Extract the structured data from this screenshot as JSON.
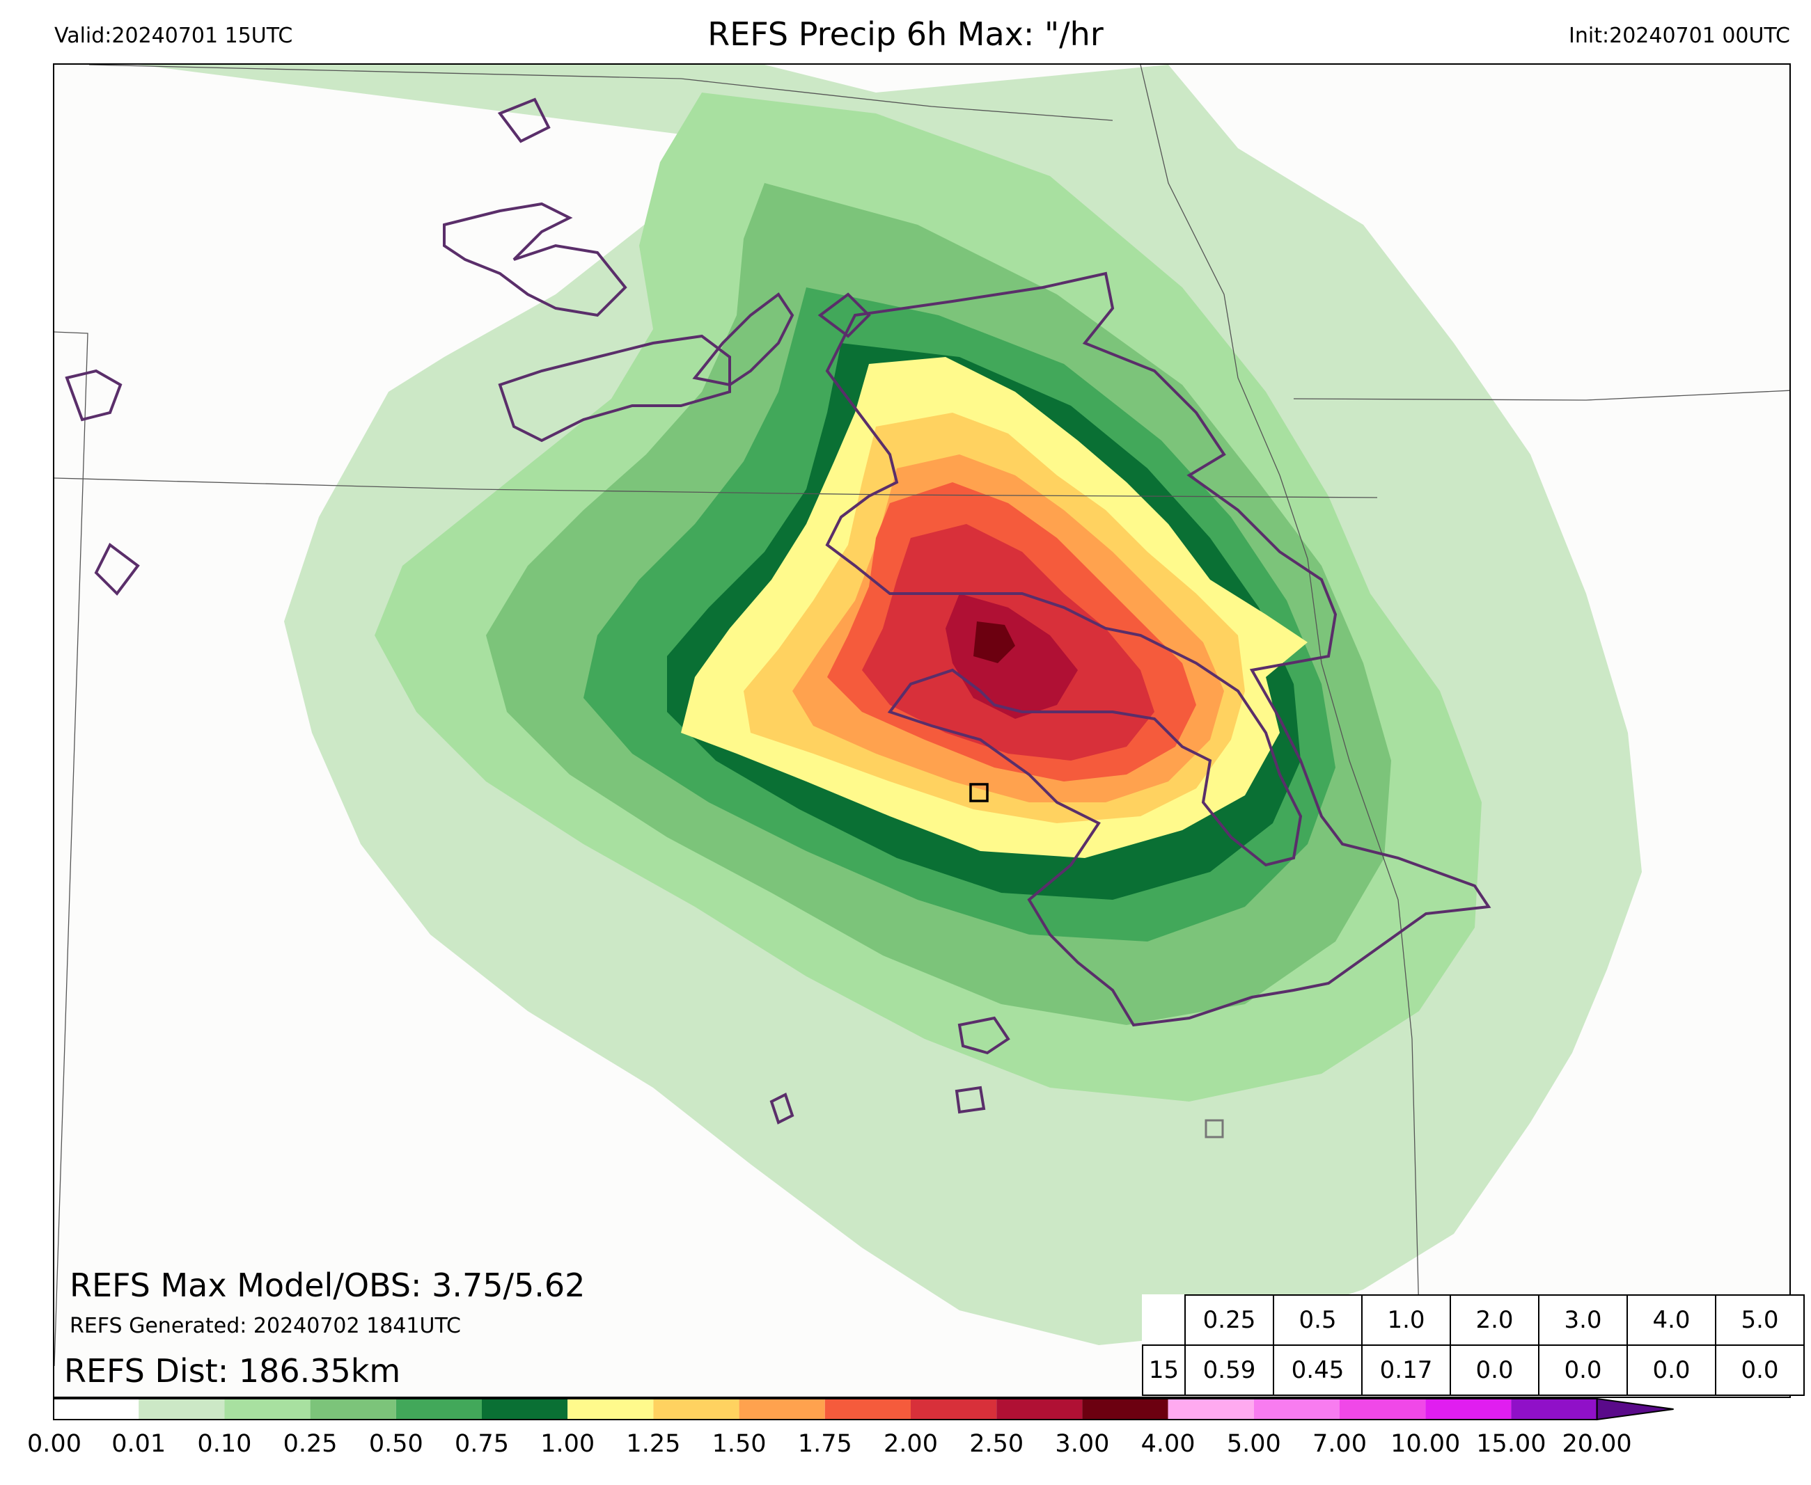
{
  "header": {
    "valid": "Valid:20240701 15UTC",
    "title": "REFS Precip 6h Max: \"/hr",
    "init": "Init:20240701 00UTC"
  },
  "annotations": {
    "max_model_obs": "REFS Max Model/OBS: 3.75/5.62",
    "generated": "REFS Generated: 20240702 1841UTC",
    "dist": "REFS Dist: 186.35km"
  },
  "prob_table": {
    "thresholds": [
      "0.25",
      "0.5",
      "1.0",
      "2.0",
      "3.0",
      "4.0",
      "5.0"
    ],
    "hour": "15",
    "values": [
      "0.59",
      "0.45",
      "0.17",
      "0.0",
      "0.0",
      "0.0",
      "0.0"
    ]
  },
  "colorbar": {
    "labels": [
      "0.00",
      "0.01",
      "0.10",
      "0.25",
      "0.50",
      "0.75",
      "1.00",
      "1.25",
      "1.50",
      "1.75",
      "2.00",
      "2.50",
      "3.00",
      "4.00",
      "5.00",
      "7.00",
      "10.00",
      "15.00",
      "20.00"
    ],
    "colors": [
      "#ffffff",
      "#cce8c6",
      "#a8e0a0",
      "#7cc47a",
      "#42a85a",
      "#0a7034",
      "#fffa8c",
      "#ffd260",
      "#ffa24e",
      "#f55b3c",
      "#d8303a",
      "#b01034",
      "#6c0010",
      "#ffaaf0",
      "#f87cf0",
      "#f048e8",
      "#e01ef0",
      "#9010c8"
    ],
    "extend_color": "#5a0a8a"
  },
  "map_colors": {
    "background": "#fcfcfb",
    "contour": "#5a2e6a",
    "border_line": "#555555"
  }
}
